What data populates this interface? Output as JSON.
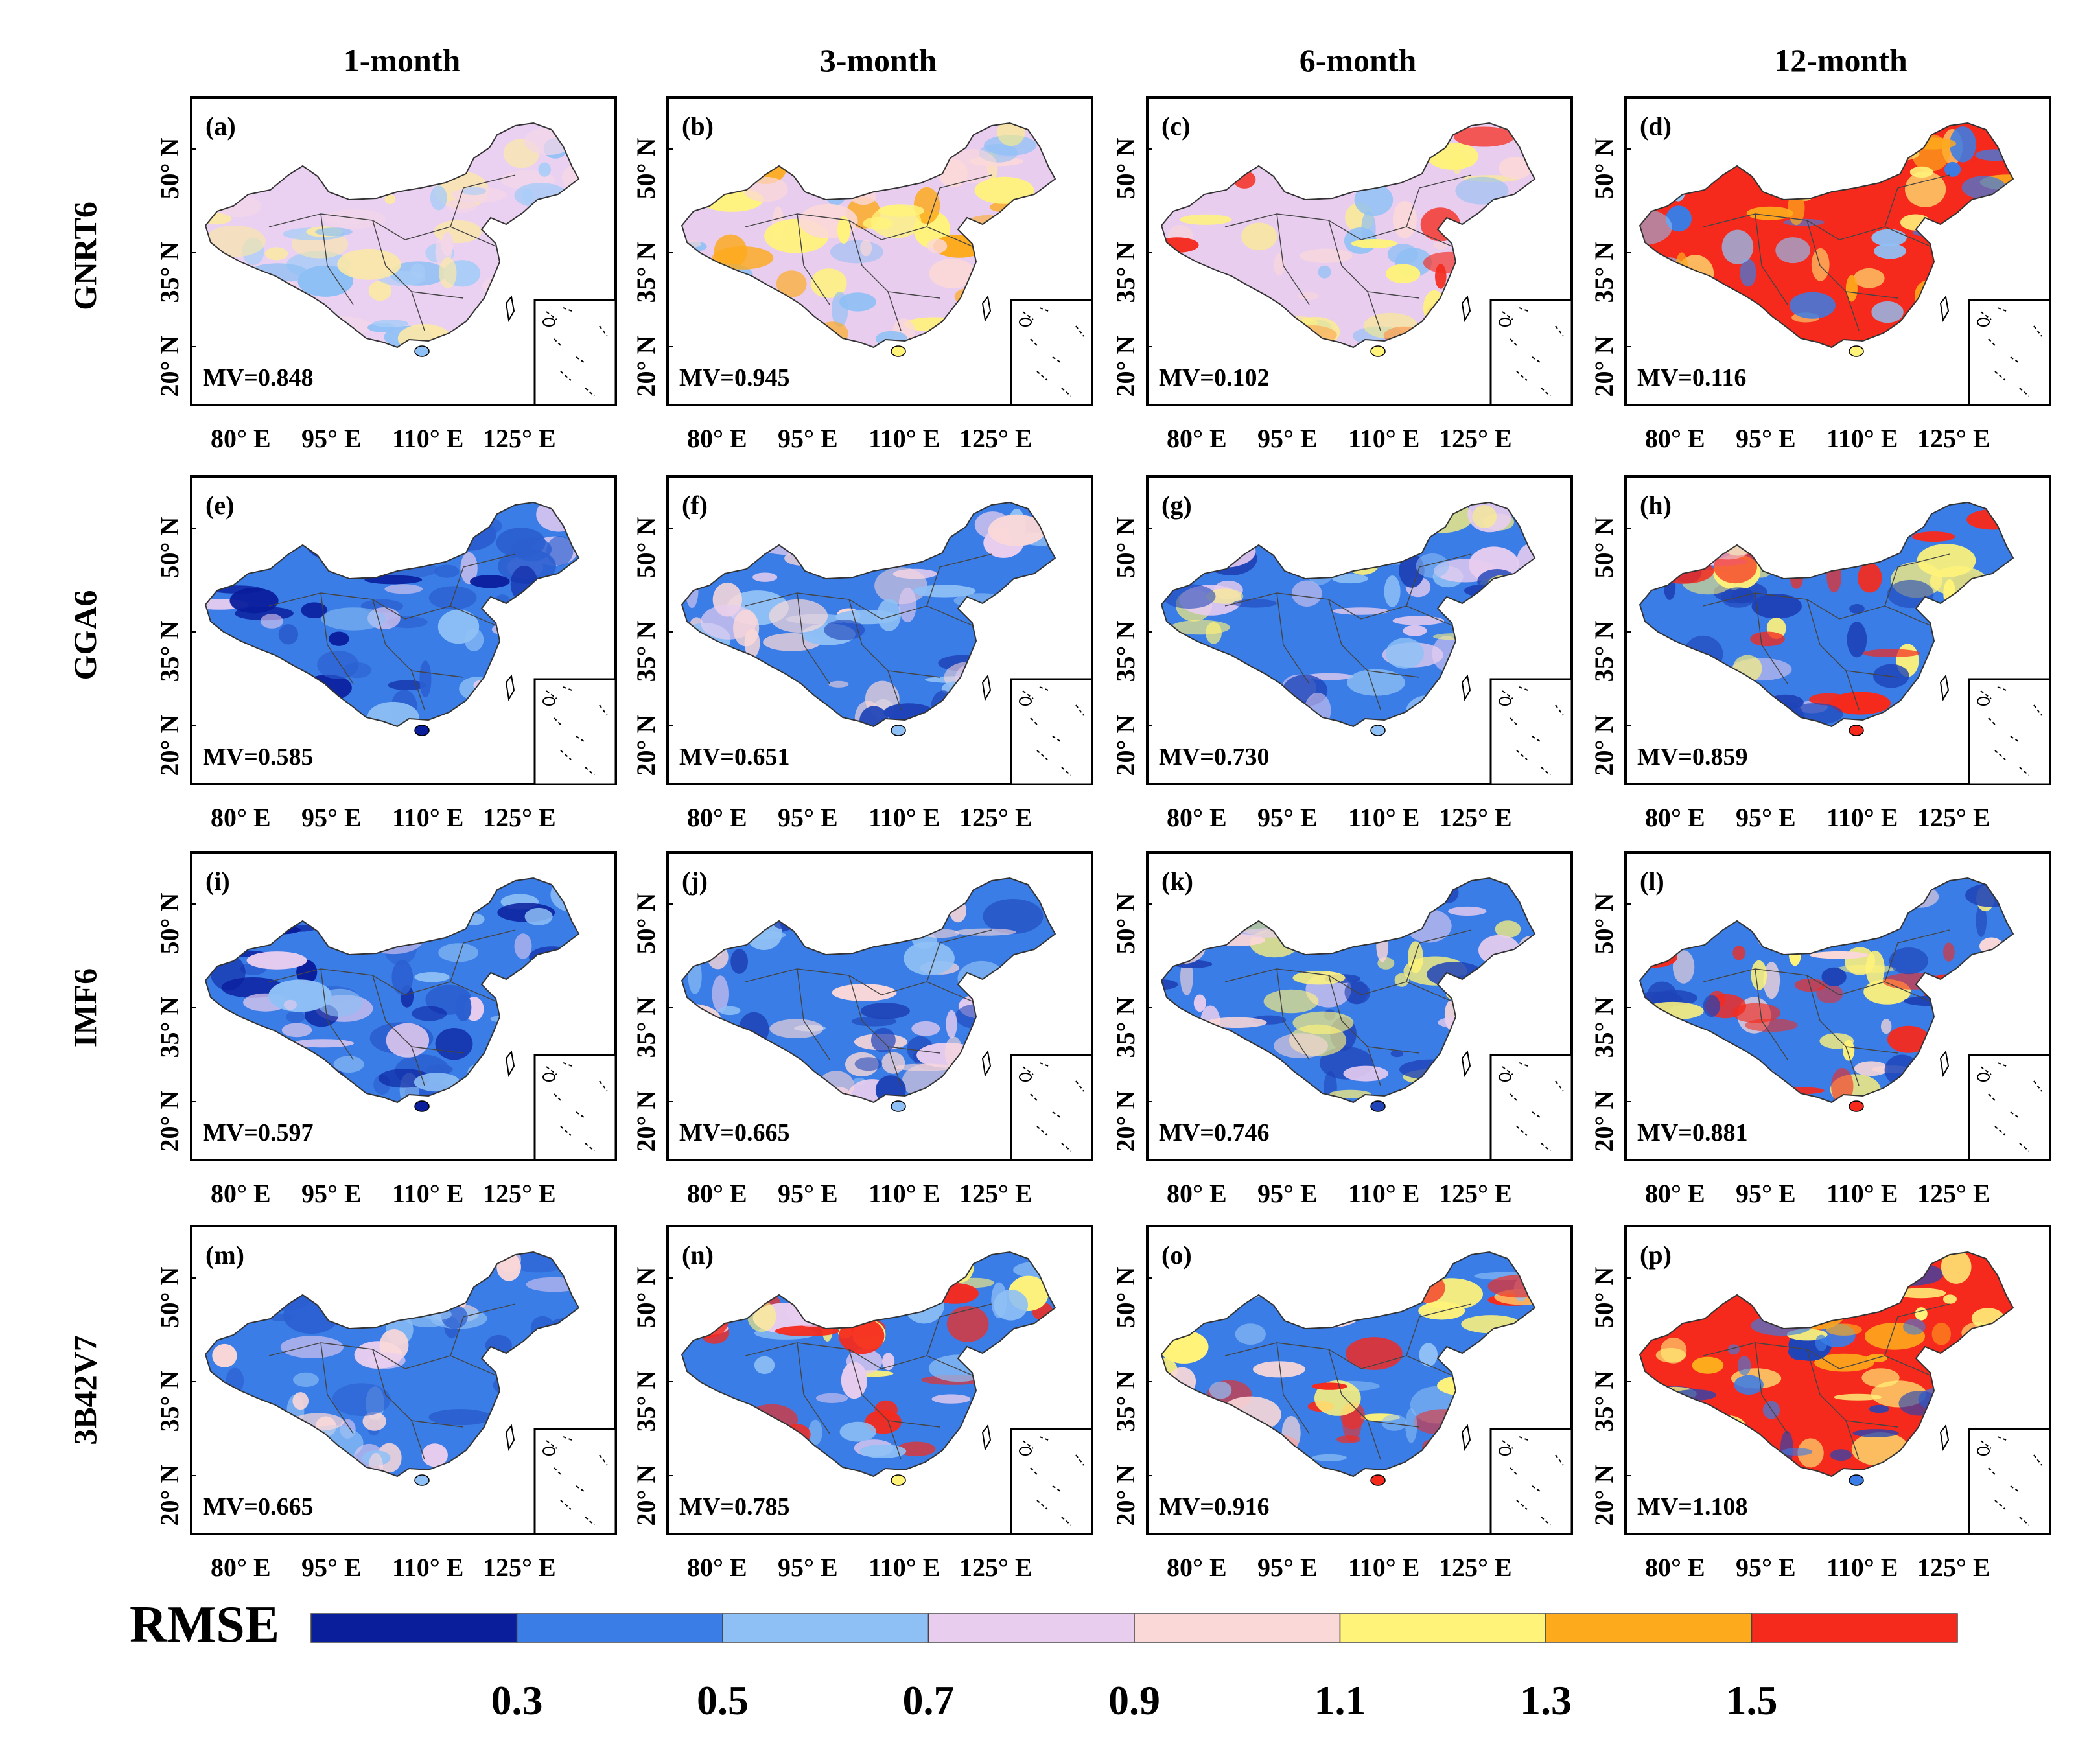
{
  "chart_data": {
    "type": "heatmap",
    "title": "",
    "columns": [
      "1-month",
      "3-month",
      "6-month",
      "12-month"
    ],
    "rows": [
      "GNRT6",
      "GGA6",
      "IMF6",
      "3B42V7"
    ],
    "x_ticks": [
      "80° E",
      "95° E",
      "110° E",
      "125° E"
    ],
    "y_ticks": [
      "50° N",
      "35° N",
      "20° N"
    ],
    "panels": [
      {
        "label": "(a)",
        "row": "GNRT6",
        "column": "1-month",
        "mv_text": "MV=0.848",
        "mv": 0.848
      },
      {
        "label": "(b)",
        "row": "GNRT6",
        "column": "3-month",
        "mv_text": "MV=0.945",
        "mv": 0.945
      },
      {
        "label": "(c)",
        "row": "GNRT6",
        "column": "6-month",
        "mv_text": "MV=0.102",
        "mv": 0.102
      },
      {
        "label": "(d)",
        "row": "GNRT6",
        "column": "12-month",
        "mv_text": "MV=0.116",
        "mv": 0.116
      },
      {
        "label": "(e)",
        "row": "GGA6",
        "column": "1-month",
        "mv_text": "MV=0.585",
        "mv": 0.585
      },
      {
        "label": "(f)",
        "row": "GGA6",
        "column": "3-month",
        "mv_text": "MV=0.651",
        "mv": 0.651
      },
      {
        "label": "(g)",
        "row": "GGA6",
        "column": "6-month",
        "mv_text": "MV=0.730",
        "mv": 0.73
      },
      {
        "label": "(h)",
        "row": "GGA6",
        "column": "12-month",
        "mv_text": "MV=0.859",
        "mv": 0.859
      },
      {
        "label": "(i)",
        "row": "IMF6",
        "column": "1-month",
        "mv_text": "MV=0.597",
        "mv": 0.597
      },
      {
        "label": "(j)",
        "row": "IMF6",
        "column": "3-month",
        "mv_text": "MV=0.665",
        "mv": 0.665
      },
      {
        "label": "(k)",
        "row": "IMF6",
        "column": "6-month",
        "mv_text": "MV=0.746",
        "mv": 0.746
      },
      {
        "label": "(l)",
        "row": "IMF6",
        "column": "12-month",
        "mv_text": "MV=0.881",
        "mv": 0.881
      },
      {
        "label": "(m)",
        "row": "3B42V7",
        "column": "1-month",
        "mv_text": "MV=0.665",
        "mv": 0.665
      },
      {
        "label": "(n)",
        "row": "3B42V7",
        "column": "3-month",
        "mv_text": "MV=0.785",
        "mv": 0.785
      },
      {
        "label": "(o)",
        "row": "3B42V7",
        "column": "6-month",
        "mv_text": "MV=0.916",
        "mv": 0.916
      },
      {
        "label": "(p)",
        "row": "3B42V7",
        "column": "12-month",
        "mv_text": "MV=1.108",
        "mv": 1.108
      }
    ],
    "colorbar": {
      "title": "RMSE",
      "colors": [
        "#0a1e9c",
        "#3a7de6",
        "#8fc0f5",
        "#e8cdef",
        "#fbd8d8",
        "#fff37a",
        "#fdaa1c",
        "#f52a1d"
      ],
      "tick_labels": [
        "0.3",
        "0.5",
        "0.7",
        "0.9",
        "1.1",
        "1.3",
        "1.5"
      ],
      "tick_values": [
        0.3,
        0.5,
        0.7,
        0.9,
        1.1,
        1.3,
        1.5
      ]
    },
    "panel_palettes": [
      [
        "#ebd1f1",
        "#8fc0f5",
        "#f3d6e8",
        "#a9cdf7",
        "#fbe8a6"
      ],
      [
        "#e9cdef",
        "#fff37a",
        "#8fc0f5",
        "#fbd8d8",
        "#fdaa1c"
      ],
      [
        "#e8cdef",
        "#fff37a",
        "#f52a1d",
        "#8fc0f5",
        "#fbd8d8"
      ],
      [
        "#f52a1d",
        "#fff37a",
        "#3a7de6",
        "#8fc0f5",
        "#fdaa1c"
      ],
      [
        "#3a7de6",
        "#0a1e9c",
        "#8fc0f5",
        "#e8cdef",
        "#2b5fd0"
      ],
      [
        "#3a7de6",
        "#8fc0f5",
        "#e8cdef",
        "#1f44b8",
        "#fbd8d8"
      ],
      [
        "#3a7de6",
        "#8fc0f5",
        "#1f44b8",
        "#e8cdef",
        "#fff37a"
      ],
      [
        "#3a7de6",
        "#f52a1d",
        "#fff37a",
        "#1f44b8",
        "#e8cdef"
      ],
      [
        "#3a7de6",
        "#0a1e9c",
        "#8fc0f5",
        "#e8cdef",
        "#2b5fd0"
      ],
      [
        "#3a7de6",
        "#8fc0f5",
        "#e8cdef",
        "#1f44b8",
        "#fbd8d8"
      ],
      [
        "#3a7de6",
        "#1f44b8",
        "#e8cdef",
        "#fff37a",
        "#fbd8d8"
      ],
      [
        "#3a7de6",
        "#f52a1d",
        "#fff37a",
        "#1f44b8",
        "#fbd8d8"
      ],
      [
        "#3a7de6",
        "#8fc0f5",
        "#e8cdef",
        "#2b5fd0",
        "#fbd8d8"
      ],
      [
        "#3a7de6",
        "#fff37a",
        "#8fc0f5",
        "#f52a1d",
        "#e8cdef"
      ],
      [
        "#3a7de6",
        "#f52a1d",
        "#fff37a",
        "#fbd8d8",
        "#8fc0f5"
      ],
      [
        "#f52a1d",
        "#3a7de6",
        "#fff37a",
        "#fdaa1c",
        "#1f44b8"
      ]
    ]
  }
}
